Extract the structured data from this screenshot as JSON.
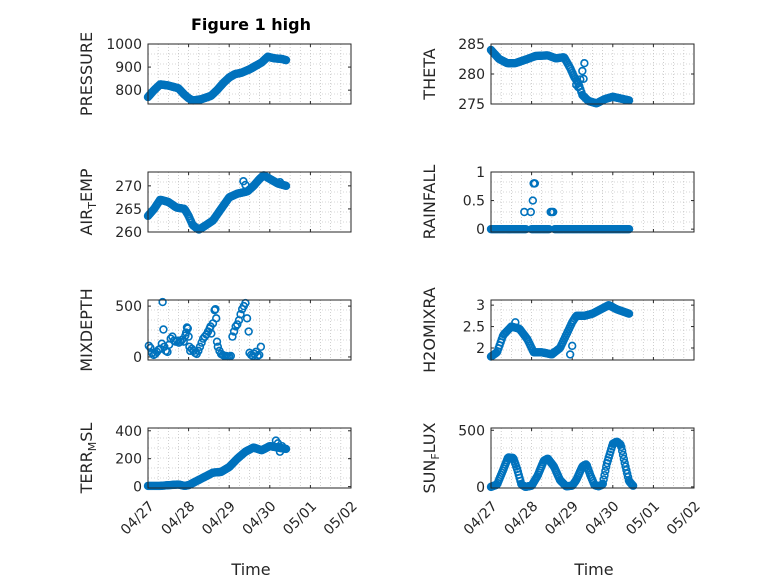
{
  "title": "Figure 1 high",
  "xlabel": "Time",
  "colors": {
    "marker": "#0072BD",
    "axis": "#262626",
    "grid": "#b0b0b0"
  },
  "chart_data": [
    {
      "type": "scatter",
      "name": "PRESSURE",
      "ylabel_main": "PRESSURE",
      "ylabel_sub": "",
      "ylabel_tail": "",
      "ylim": [
        740,
        1000
      ],
      "yticks": [
        800,
        900,
        1000
      ],
      "yticklabels": [
        "800",
        "900",
        "1000"
      ],
      "xlim": [
        0,
        5
      ],
      "xticks_shown": false,
      "grid": true,
      "keypoints": [
        [
          0,
          770
        ],
        [
          0.15,
          800
        ],
        [
          0.3,
          825
        ],
        [
          0.5,
          820
        ],
        [
          0.75,
          808
        ],
        [
          0.9,
          780
        ],
        [
          1.0,
          765
        ],
        [
          1.1,
          755
        ],
        [
          1.3,
          760
        ],
        [
          1.55,
          775
        ],
        [
          1.7,
          800
        ],
        [
          1.85,
          830
        ],
        [
          2.0,
          855
        ],
        [
          2.15,
          870
        ],
        [
          2.3,
          875
        ],
        [
          2.5,
          890
        ],
        [
          2.65,
          905
        ],
        [
          2.8,
          920
        ],
        [
          2.95,
          945
        ],
        [
          3.1,
          938
        ],
        [
          3.3,
          935
        ],
        [
          3.4,
          930
        ]
      ],
      "n": 160
    },
    {
      "type": "scatter",
      "name": "THETA",
      "ylabel_main": "THETA",
      "ylabel_sub": "",
      "ylabel_tail": "",
      "ylim": [
        275,
        285
      ],
      "yticks": [
        275,
        280,
        285
      ],
      "yticklabels": [
        "275",
        "280",
        "285"
      ],
      "xlim": [
        0,
        5
      ],
      "xticks_shown": false,
      "grid": true,
      "keypoints": [
        [
          0,
          284
        ],
        [
          0.2,
          282.5
        ],
        [
          0.4,
          281.8
        ],
        [
          0.6,
          281.8
        ],
        [
          0.9,
          282.5
        ],
        [
          1.1,
          283
        ],
        [
          1.4,
          283.1
        ],
        [
          1.6,
          282.6
        ],
        [
          1.8,
          282.8
        ],
        [
          1.95,
          281
        ],
        [
          2.05,
          279.5
        ],
        [
          2.15,
          278.5
        ],
        [
          2.25,
          276.5
        ],
        [
          2.4,
          275.5
        ],
        [
          2.6,
          275.1
        ],
        [
          2.8,
          275.8
        ],
        [
          3.0,
          276.2
        ],
        [
          3.2,
          275.9
        ],
        [
          3.4,
          275.6
        ]
      ],
      "n": 140,
      "extra": [
        [
          2.1,
          278.2
        ],
        [
          2.15,
          277.8
        ],
        [
          2.2,
          279.1
        ],
        [
          2.25,
          280.5
        ],
        [
          2.3,
          281.8
        ],
        [
          2.28,
          279.2
        ]
      ]
    },
    {
      "type": "scatter",
      "name": "AIR_TEMP",
      "ylabel_main": "AIR",
      "ylabel_sub": "T",
      "ylabel_tail": "EMP",
      "ylim": [
        260,
        273
      ],
      "yticks": [
        260,
        265,
        270
      ],
      "yticklabels": [
        "260",
        "265",
        "270"
      ],
      "xlim": [
        0,
        5
      ],
      "xticks_shown": false,
      "grid": true,
      "keypoints": [
        [
          0,
          263.5
        ],
        [
          0.15,
          265
        ],
        [
          0.3,
          267
        ],
        [
          0.5,
          266.5
        ],
        [
          0.7,
          265.3
        ],
        [
          0.9,
          265
        ],
        [
          1.0,
          263.5
        ],
        [
          1.1,
          261.5
        ],
        [
          1.25,
          260.5
        ],
        [
          1.4,
          261.3
        ],
        [
          1.6,
          262.5
        ],
        [
          1.8,
          265
        ],
        [
          2.0,
          267.5
        ],
        [
          2.2,
          268.3
        ],
        [
          2.45,
          268.8
        ],
        [
          2.6,
          270
        ],
        [
          2.75,
          271.5
        ],
        [
          2.85,
          272.3
        ],
        [
          3.0,
          271.5
        ],
        [
          3.2,
          270.5
        ],
        [
          3.4,
          270
        ]
      ],
      "n": 150,
      "extra": [
        [
          2.35,
          271
        ],
        [
          2.4,
          270.2
        ],
        [
          3.25,
          270.8
        ]
      ]
    },
    {
      "type": "scatter",
      "name": "RAINFALL",
      "ylabel_main": "RAINFALL",
      "ylabel_sub": "",
      "ylabel_tail": "",
      "ylim": [
        -0.05,
        1
      ],
      "yticks": [
        0,
        0.5,
        1
      ],
      "yticklabels": [
        "0",
        "0.5",
        "1"
      ],
      "xlim": [
        0,
        5
      ],
      "xticks_shown": false,
      "grid": true,
      "keypoints": [
        [
          0,
          0
        ],
        [
          3.4,
          0
        ]
      ],
      "n": 120,
      "gaps": [
        [
          0.88,
          0.99
        ],
        [
          1.45,
          1.55
        ]
      ],
      "extra": [
        [
          0.82,
          0.3
        ],
        [
          0.98,
          0.3
        ],
        [
          1.03,
          0.5
        ],
        [
          1.05,
          0.8
        ],
        [
          1.08,
          0.8
        ],
        [
          1.06,
          0.8
        ],
        [
          1.07,
          0.8
        ],
        [
          1.47,
          0.3
        ],
        [
          1.5,
          0.3
        ],
        [
          1.53,
          0.3
        ]
      ]
    },
    {
      "type": "scatter",
      "name": "MIXDEPTH",
      "ylabel_main": "MIXDEPTH",
      "ylabel_sub": "",
      "ylabel_tail": "",
      "ylim": [
        -30,
        560
      ],
      "yticks": [
        0,
        500
      ],
      "yticklabels": [
        "0",
        "500"
      ],
      "xlim": [
        0,
        5
      ],
      "xticks_shown": false,
      "grid": true,
      "points": [
        [
          0.02,
          110
        ],
        [
          0.06,
          90
        ],
        [
          0.1,
          40
        ],
        [
          0.14,
          20
        ],
        [
          0.18,
          30
        ],
        [
          0.22,
          50
        ],
        [
          0.26,
          70
        ],
        [
          0.3,
          80
        ],
        [
          0.34,
          130
        ],
        [
          0.36,
          540
        ],
        [
          0.38,
          270
        ],
        [
          0.4,
          100
        ],
        [
          0.44,
          60
        ],
        [
          0.48,
          50
        ],
        [
          0.52,
          120
        ],
        [
          0.56,
          180
        ],
        [
          0.6,
          200
        ],
        [
          0.64,
          160
        ],
        [
          0.68,
          150
        ],
        [
          0.72,
          160
        ],
        [
          0.76,
          140
        ],
        [
          0.8,
          150
        ],
        [
          0.84,
          170
        ],
        [
          0.88,
          150
        ],
        [
          0.92,
          210
        ],
        [
          0.94,
          240
        ],
        [
          0.96,
          290
        ],
        [
          0.98,
          280
        ],
        [
          1.0,
          200
        ],
        [
          1.02,
          100
        ],
        [
          1.04,
          60
        ],
        [
          1.08,
          80
        ],
        [
          1.12,
          60
        ],
        [
          1.16,
          40
        ],
        [
          1.2,
          30
        ],
        [
          1.24,
          60
        ],
        [
          1.28,
          100
        ],
        [
          1.32,
          140
        ],
        [
          1.36,
          180
        ],
        [
          1.4,
          200
        ],
        [
          1.44,
          220
        ],
        [
          1.48,
          250
        ],
        [
          1.52,
          280
        ],
        [
          1.54,
          300
        ],
        [
          1.56,
          230
        ],
        [
          1.6,
          330
        ],
        [
          1.64,
          460
        ],
        [
          1.66,
          470
        ],
        [
          1.68,
          380
        ],
        [
          1.7,
          150
        ],
        [
          1.72,
          100
        ],
        [
          1.76,
          60
        ],
        [
          1.8,
          30
        ],
        [
          1.84,
          20
        ],
        [
          1.88,
          10
        ],
        [
          1.92,
          10
        ],
        [
          1.96,
          5
        ],
        [
          2.0,
          5
        ],
        [
          2.04,
          10
        ],
        [
          2.08,
          200
        ],
        [
          2.12,
          250
        ],
        [
          2.16,
          300
        ],
        [
          2.2,
          320
        ],
        [
          2.24,
          360
        ],
        [
          2.28,
          420
        ],
        [
          2.32,
          470
        ],
        [
          2.36,
          500
        ],
        [
          2.4,
          530
        ],
        [
          2.44,
          380
        ],
        [
          2.48,
          250
        ],
        [
          2.5,
          40
        ],
        [
          2.54,
          20
        ],
        [
          2.58,
          10
        ],
        [
          2.62,
          30
        ],
        [
          2.66,
          50
        ],
        [
          2.7,
          10
        ],
        [
          2.74,
          20
        ],
        [
          2.78,
          100
        ]
      ]
    },
    {
      "type": "scatter",
      "name": "H2OMIXRA",
      "ylabel_main": "H2OMIXRA",
      "ylabel_sub": "",
      "ylabel_tail": "",
      "ylim": [
        1.72,
        3.12
      ],
      "yticks": [
        2,
        2.5,
        3
      ],
      "yticklabels": [
        "2",
        "2.5",
        "3"
      ],
      "xlim": [
        0,
        5
      ],
      "xticks_shown": false,
      "grid": true,
      "keypoints": [
        [
          0,
          1.8
        ],
        [
          0.15,
          1.9
        ],
        [
          0.3,
          2.3
        ],
        [
          0.5,
          2.5
        ],
        [
          0.7,
          2.45
        ],
        [
          0.9,
          2.2
        ],
        [
          1.05,
          1.9
        ],
        [
          1.25,
          1.9
        ],
        [
          1.5,
          1.85
        ],
        [
          1.7,
          2.0
        ],
        [
          1.85,
          2.3
        ],
        [
          2.0,
          2.6
        ],
        [
          2.1,
          2.75
        ],
        [
          2.3,
          2.75
        ],
        [
          2.5,
          2.8
        ],
        [
          2.7,
          2.9
        ],
        [
          2.9,
          3.0
        ],
        [
          3.1,
          2.9
        ],
        [
          3.4,
          2.8
        ]
      ],
      "n": 130,
      "extra": [
        [
          1.95,
          1.85
        ],
        [
          2.0,
          2.05
        ],
        [
          0.6,
          2.6
        ],
        [
          1.55,
          1.9
        ]
      ]
    },
    {
      "type": "scatter",
      "name": "TERR_MSL",
      "ylabel_main": "TERR",
      "ylabel_sub": "M",
      "ylabel_tail": "SL",
      "ylim": [
        -10,
        420
      ],
      "yticks": [
        0,
        200,
        400
      ],
      "yticklabels": [
        "0",
        "200",
        "400"
      ],
      "xlim": [
        0,
        5
      ],
      "xticks_shown": true,
      "grid": true,
      "xticks": [
        0,
        1,
        2,
        3,
        4,
        5
      ],
      "xticklabels": [
        "04/27",
        "04/28",
        "04/29",
        "04/30",
        "05/01",
        "05/02"
      ],
      "keypoints": [
        [
          0,
          5
        ],
        [
          0.3,
          5
        ],
        [
          0.5,
          10
        ],
        [
          0.75,
          15
        ],
        [
          0.9,
          5
        ],
        [
          1.0,
          10
        ],
        [
          1.2,
          40
        ],
        [
          1.4,
          70
        ],
        [
          1.6,
          100
        ],
        [
          1.8,
          105
        ],
        [
          2.0,
          140
        ],
        [
          2.2,
          200
        ],
        [
          2.4,
          250
        ],
        [
          2.6,
          280
        ],
        [
          2.8,
          260
        ],
        [
          3.0,
          290
        ],
        [
          3.2,
          280
        ],
        [
          3.4,
          270
        ]
      ],
      "n": 150,
      "extra": [
        [
          3.15,
          330
        ],
        [
          3.2,
          310
        ],
        [
          3.25,
          250
        ],
        [
          3.3,
          290
        ]
      ]
    },
    {
      "type": "scatter",
      "name": "SUN_FLUX",
      "ylabel_main": "SUN",
      "ylabel_sub": "F",
      "ylabel_tail": "LUX",
      "ylim": [
        -10,
        520
      ],
      "yticks": [
        0,
        500
      ],
      "yticklabels": [
        "0",
        "500"
      ],
      "xlim": [
        0,
        5
      ],
      "xticks_shown": true,
      "grid": true,
      "xticks": [
        0,
        1,
        2,
        3,
        4,
        5
      ],
      "xticklabels": [
        "04/27",
        "04/28",
        "04/29",
        "04/30",
        "05/01",
        "05/02"
      ],
      "keypoints": [
        [
          0,
          0
        ],
        [
          0.15,
          20
        ],
        [
          0.3,
          150
        ],
        [
          0.42,
          260
        ],
        [
          0.55,
          255
        ],
        [
          0.65,
          150
        ],
        [
          0.75,
          20
        ],
        [
          0.85,
          0
        ],
        [
          1.0,
          10
        ],
        [
          1.15,
          100
        ],
        [
          1.3,
          230
        ],
        [
          1.4,
          250
        ],
        [
          1.55,
          180
        ],
        [
          1.7,
          60
        ],
        [
          1.85,
          5
        ],
        [
          2.0,
          10
        ],
        [
          2.1,
          60
        ],
        [
          2.25,
          180
        ],
        [
          2.35,
          200
        ],
        [
          2.45,
          100
        ],
        [
          2.55,
          15
        ],
        [
          2.65,
          5
        ],
        [
          2.75,
          20
        ],
        [
          2.85,
          200
        ],
        [
          3.0,
          380
        ],
        [
          3.1,
          400
        ],
        [
          3.2,
          370
        ],
        [
          3.3,
          200
        ],
        [
          3.4,
          50
        ],
        [
          3.5,
          10
        ]
      ],
      "n": 170
    }
  ]
}
